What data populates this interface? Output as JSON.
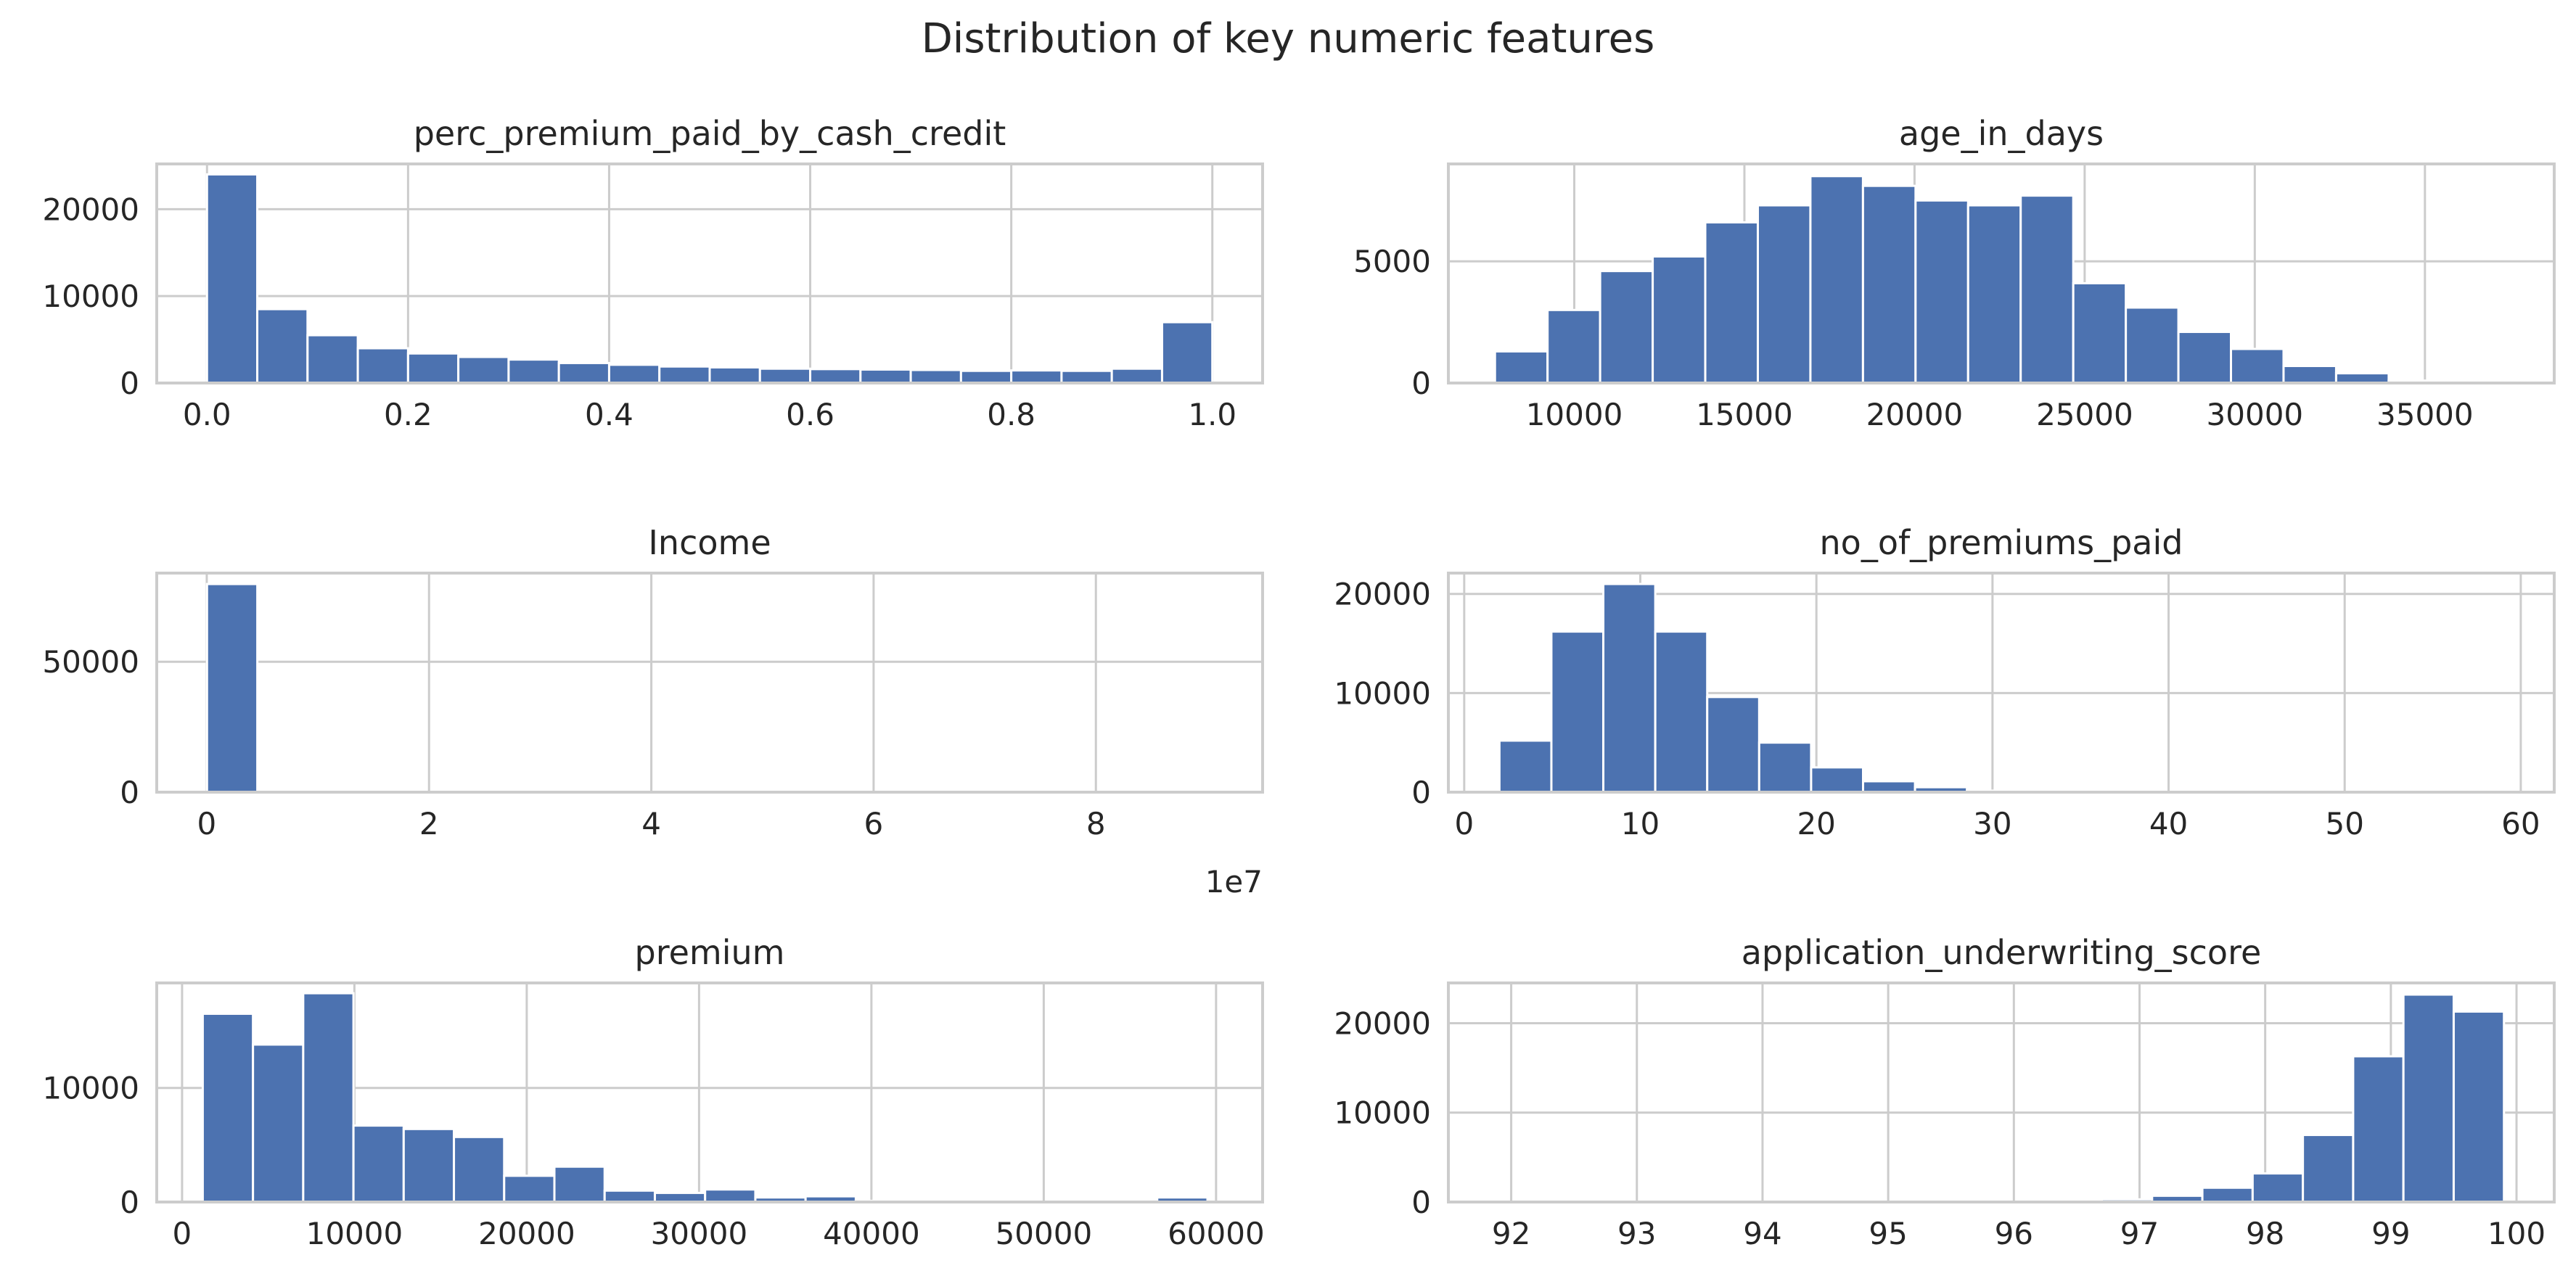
{
  "figure": {
    "title": "Distribution of key numeric features"
  },
  "colors": {
    "bar": "#4c72b0",
    "grid": "#cccccc",
    "frame": "#cccccc",
    "text": "#262626"
  },
  "chart_data": [
    {
      "type": "bar",
      "title": "perc_premium_paid_by_cash_credit",
      "xlim": [
        -0.05,
        1.05
      ],
      "ylim": [
        0,
        25200
      ],
      "xticks": [
        0.0,
        0.2,
        0.4,
        0.6,
        0.8,
        1.0
      ],
      "xtick_labels": [
        "0.0",
        "0.2",
        "0.4",
        "0.6",
        "0.8",
        "1.0"
      ],
      "yticks": [
        0,
        10000,
        20000
      ],
      "ytick_labels": [
        "0",
        "10000",
        "20000"
      ],
      "bin_start": 0.0,
      "bin_width": 0.05,
      "values": [
        24000,
        8500,
        5500,
        4000,
        3400,
        3000,
        2700,
        2300,
        2100,
        1900,
        1800,
        1650,
        1600,
        1550,
        1500,
        1400,
        1450,
        1400,
        1650,
        7000
      ],
      "grid": true
    },
    {
      "type": "bar",
      "title": "age_in_days",
      "xlim": [
        6300,
        38800
      ],
      "ylim": [
        0,
        9000
      ],
      "xticks": [
        10000,
        15000,
        20000,
        25000,
        30000,
        35000
      ],
      "xtick_labels": [
        "10000",
        "15000",
        "20000",
        "25000",
        "30000",
        "35000"
      ],
      "yticks": [
        0,
        5000
      ],
      "ytick_labels": [
        "0",
        "5000"
      ],
      "bin_start": 7670,
      "bin_width": 1545,
      "values": [
        1300,
        3000,
        4600,
        5200,
        6600,
        7300,
        8500,
        8100,
        7500,
        7300,
        7700,
        4100,
        3100,
        2100,
        1400,
        700,
        400,
        100,
        30,
        10
      ],
      "grid": true
    },
    {
      "type": "bar",
      "title": "Income",
      "xlim": [
        -4500000,
        95000000
      ],
      "ylim": [
        0,
        84000
      ],
      "xticks": [
        0,
        20000000,
        40000000,
        60000000,
        80000000
      ],
      "xtick_labels": [
        "0",
        "2",
        "4",
        "6",
        "8"
      ],
      "yticks": [
        0,
        50000
      ],
      "ytick_labels": [
        "0",
        "50000"
      ],
      "offset_label": "1e7",
      "bin_start": 24030,
      "bin_width": 4526000,
      "values": [
        79800,
        0,
        0,
        0,
        0,
        0,
        0,
        0,
        0,
        0,
        0,
        0,
        0,
        0,
        0,
        0,
        0,
        0,
        0,
        0
      ],
      "grid": true
    },
    {
      "type": "bar",
      "title": "no_of_premiums_paid",
      "xlim": [
        -0.9,
        61.9
      ],
      "ylim": [
        0,
        22100
      ],
      "xticks": [
        0,
        10,
        20,
        30,
        40,
        50,
        60
      ],
      "xtick_labels": [
        "0",
        "10",
        "20",
        "30",
        "40",
        "50",
        "60"
      ],
      "yticks": [
        0,
        10000,
        20000
      ],
      "ytick_labels": [
        "0",
        "10000",
        "20000"
      ],
      "bin_start": 2,
      "bin_width": 2.95,
      "values": [
        5200,
        16200,
        21000,
        16200,
        9600,
        5000,
        2500,
        1100,
        500,
        150,
        50,
        20,
        10,
        5,
        3,
        2,
        1,
        1,
        0,
        0
      ],
      "grid": true
    },
    {
      "type": "bar",
      "title": "premium",
      "xlim": [
        -1470,
        62700
      ],
      "ylim": [
        0,
        19200
      ],
      "xticks": [
        0,
        10000,
        20000,
        30000,
        40000,
        50000,
        60000
      ],
      "xtick_labels": [
        "0",
        "10000",
        "20000",
        "30000",
        "40000",
        "50000",
        "60000"
      ],
      "yticks": [
        0,
        10000
      ],
      "ytick_labels": [
        "0",
        "10000"
      ],
      "bin_start": 1200,
      "bin_width": 2915,
      "values": [
        16500,
        13800,
        18300,
        6700,
        6400,
        5700,
        2300,
        3100,
        1000,
        800,
        1100,
        400,
        500,
        100,
        60,
        40,
        30,
        20,
        20,
        400
      ],
      "grid": true
    },
    {
      "type": "bar",
      "title": "application_underwriting_score",
      "xlim": [
        91.5,
        100.3
      ],
      "ylim": [
        0,
        24500
      ],
      "xticks": [
        92,
        93,
        94,
        95,
        96,
        97,
        98,
        99,
        100
      ],
      "xtick_labels": [
        "92",
        "93",
        "94",
        "95",
        "96",
        "97",
        "98",
        "99",
        "100"
      ],
      "yticks": [
        0,
        10000,
        20000
      ],
      "ytick_labels": [
        "0",
        "10000",
        "20000"
      ],
      "bin_start": 91.9,
      "bin_width": 0.4,
      "values": [
        5,
        5,
        5,
        5,
        5,
        5,
        10,
        10,
        10,
        20,
        20,
        30,
        300,
        700,
        1600,
        3200,
        7500,
        16300,
        23200,
        21300
      ],
      "grid": true
    }
  ]
}
